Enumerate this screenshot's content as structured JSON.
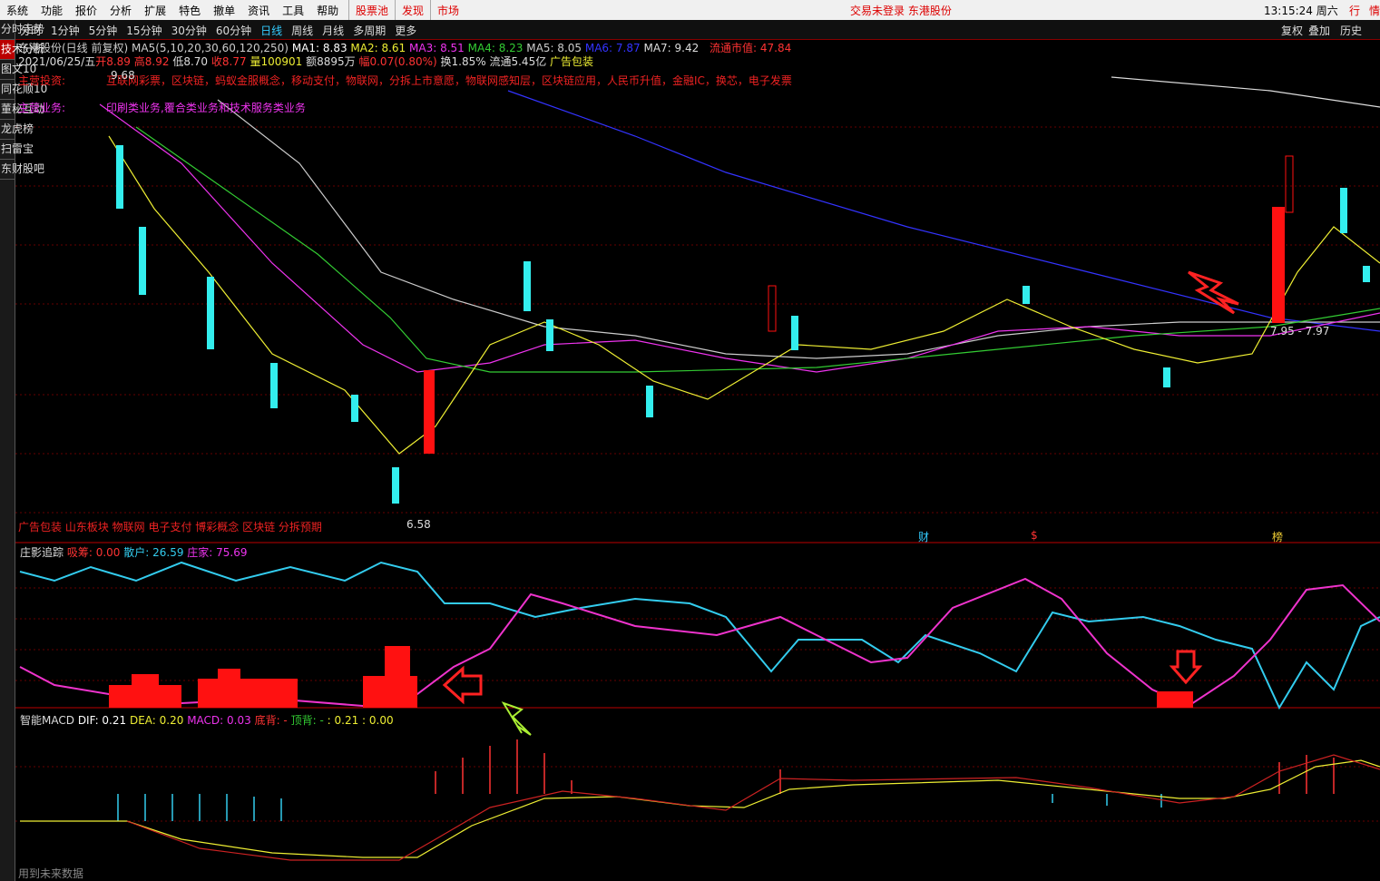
{
  "menu": {
    "items": [
      "系统",
      "功能",
      "报价",
      "分析",
      "扩展",
      "特色",
      "撤单",
      "资讯",
      "工具",
      "帮助"
    ],
    "highlight": [
      "股票池",
      "发现",
      "市场"
    ],
    "status": "交易未登录 东港股份",
    "clock": "13:15:24 周六",
    "right": [
      "行",
      "情"
    ]
  },
  "periods": {
    "items": [
      "分时",
      "1分钟",
      "5分钟",
      "15分钟",
      "30分钟",
      "60分钟",
      "日线",
      "周线",
      "月线",
      "多周期",
      "更多"
    ],
    "right": [
      "复权",
      "叠加",
      "历史"
    ]
  },
  "left_tabs": [
    "分时走势",
    "技术分析",
    "图文10",
    "同花顺10",
    "董秘互动",
    "龙虎榜",
    "扫雷宝",
    "东财股吧"
  ],
  "chart": {
    "name": "东港股份(日线 前复权)",
    "ma_params": "MA5(5,10,20,30,60,120,250)",
    "mas": [
      "MA1: 8.83",
      "MA2: 8.61",
      "MA3: 8.51",
      "MA4: 8.23",
      "MA5: 8.05",
      "MA6: 7.87",
      "MA7: 9.42"
    ],
    "float_cap": "流通市值: 47.84",
    "quote": [
      "2021/06/25/五",
      "开8.89",
      "高8.92",
      "低8.70",
      "收8.77",
      "量100901",
      "额8895万",
      "幅0.07(0.80%)",
      "换1.85%",
      "流通5.45亿",
      "广告包装"
    ],
    "invest_label": "主营投资:",
    "invest": "互联网彩票，区块链，蚂蚁金服概念，移动支付，物联网，分拆上市意愿，物联网感知层，区块链应用，人民币升值，金融IC，换芯，电子发票",
    "business_label": "主营业务:",
    "business": "印刷类业务,覆合类业务和技术服务类业务",
    "high": "9.68",
    "low": "6.58",
    "range": "7.95 - 7.97",
    "concepts": "广告包装 山东板块 物联网 电子支付 博彩概念 区块链 分拆预期",
    "markers": [
      "财",
      "$",
      "榜"
    ]
  },
  "indicator": {
    "title": "庄影追踪",
    "values": [
      "吸筹: 0.00",
      "散户: 26.59",
      "庄家: 75.69"
    ]
  },
  "macd": {
    "title": "智能MACD",
    "values": [
      "DIF: 0.21",
      "DEA: 0.20",
      "MACD: 0.03",
      "底背: -",
      "顶背: -",
      ": 0.21 : 0.00"
    ],
    "footer": "用到未来数据"
  }
}
